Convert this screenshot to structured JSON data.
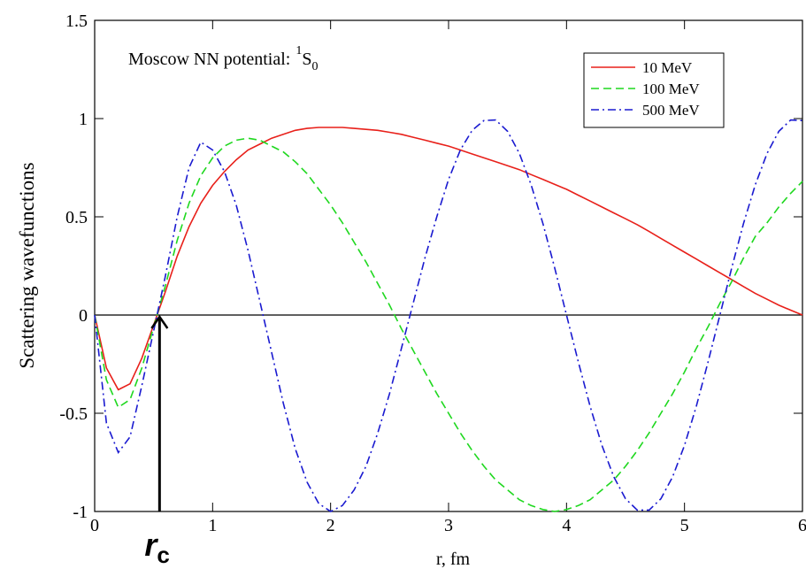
{
  "chart_data": {
    "type": "line",
    "y_label": "Scattering wavefunctions",
    "x_label": "r, fm",
    "annotation": {
      "text": "Moscow NN potential:",
      "sup": "1",
      "main": "S",
      "sub": "0"
    },
    "marker": {
      "x": 0.55,
      "label": "r",
      "sub": "c"
    },
    "xlim": [
      0,
      6
    ],
    "xticks": [
      0,
      1,
      2,
      3,
      4,
      5,
      6
    ],
    "ylim": [
      -1,
      1.5
    ],
    "yticks": [
      -1,
      -0.5,
      0,
      0.5,
      1,
      1.5
    ],
    "legend": "upper right",
    "x": [
      0,
      0.1,
      0.2,
      0.3,
      0.4,
      0.5,
      0.6,
      0.7,
      0.8,
      0.9,
      1.0,
      1.1,
      1.2,
      1.3,
      1.4,
      1.5,
      1.6,
      1.7,
      1.8,
      1.9,
      2.0,
      2.1,
      2.2,
      2.3,
      2.4,
      2.5,
      2.6,
      2.7,
      2.8,
      2.9,
      3.0,
      3.1,
      3.2,
      3.3,
      3.4,
      3.5,
      3.6,
      3.7,
      3.8,
      3.9,
      4.0,
      4.1,
      4.2,
      4.3,
      4.4,
      4.5,
      4.6,
      4.7,
      4.8,
      4.9,
      5.0,
      5.1,
      5.2,
      5.3,
      5.4,
      5.5,
      5.6,
      5.7,
      5.8,
      5.9,
      6.0
    ],
    "series": [
      {
        "name": "10 MeV",
        "color": "#e8201a",
        "dash": "solid",
        "values": [
          0,
          -0.27,
          -0.38,
          -0.35,
          -0.22,
          -0.05,
          0.12,
          0.3,
          0.45,
          0.57,
          0.66,
          0.73,
          0.79,
          0.84,
          0.87,
          0.9,
          0.92,
          0.94,
          0.95,
          0.955,
          0.955,
          0.955,
          0.95,
          0.945,
          0.94,
          0.93,
          0.92,
          0.905,
          0.89,
          0.875,
          0.86,
          0.84,
          0.82,
          0.8,
          0.78,
          0.76,
          0.74,
          0.715,
          0.69,
          0.665,
          0.64,
          0.61,
          0.58,
          0.55,
          0.52,
          0.49,
          0.46,
          0.425,
          0.39,
          0.355,
          0.32,
          0.285,
          0.25,
          0.215,
          0.18,
          0.145,
          0.11,
          0.08,
          0.05,
          0.025,
          0.0
        ]
      },
      {
        "name": "100 MeV",
        "color": "#1fd81f",
        "dash": "dashed",
        "values": [
          0,
          -0.33,
          -0.47,
          -0.43,
          -0.27,
          -0.06,
          0.15,
          0.38,
          0.57,
          0.71,
          0.8,
          0.86,
          0.89,
          0.9,
          0.89,
          0.86,
          0.83,
          0.78,
          0.72,
          0.64,
          0.56,
          0.47,
          0.37,
          0.27,
          0.16,
          0.05,
          -0.07,
          -0.18,
          -0.29,
          -0.4,
          -0.5,
          -0.6,
          -0.69,
          -0.77,
          -0.84,
          -0.89,
          -0.94,
          -0.97,
          -0.99,
          -1.0,
          -0.99,
          -0.97,
          -0.94,
          -0.89,
          -0.84,
          -0.77,
          -0.69,
          -0.6,
          -0.5,
          -0.4,
          -0.29,
          -0.17,
          -0.06,
          0.06,
          0.17,
          0.29,
          0.4,
          0.47,
          0.55,
          0.62,
          0.68
        ]
      },
      {
        "name": "500 MeV",
        "color": "#1a1ad0",
        "dash": "dashdot",
        "values": [
          0,
          -0.55,
          -0.7,
          -0.62,
          -0.36,
          -0.08,
          0.2,
          0.5,
          0.75,
          0.88,
          0.84,
          0.73,
          0.56,
          0.33,
          0.07,
          -0.19,
          -0.45,
          -0.68,
          -0.85,
          -0.96,
          -1.0,
          -0.97,
          -0.89,
          -0.77,
          -0.6,
          -0.4,
          -0.17,
          0.06,
          0.29,
          0.5,
          0.69,
          0.84,
          0.94,
          0.99,
          0.993,
          0.935,
          0.823,
          0.663,
          0.465,
          0.239,
          0.0,
          -0.239,
          -0.465,
          -0.663,
          -0.823,
          -0.935,
          -0.993,
          -0.993,
          -0.935,
          -0.823,
          -0.663,
          -0.465,
          -0.239,
          0.0,
          0.239,
          0.465,
          0.663,
          0.823,
          0.935,
          0.993,
          0.99
        ]
      }
    ]
  }
}
